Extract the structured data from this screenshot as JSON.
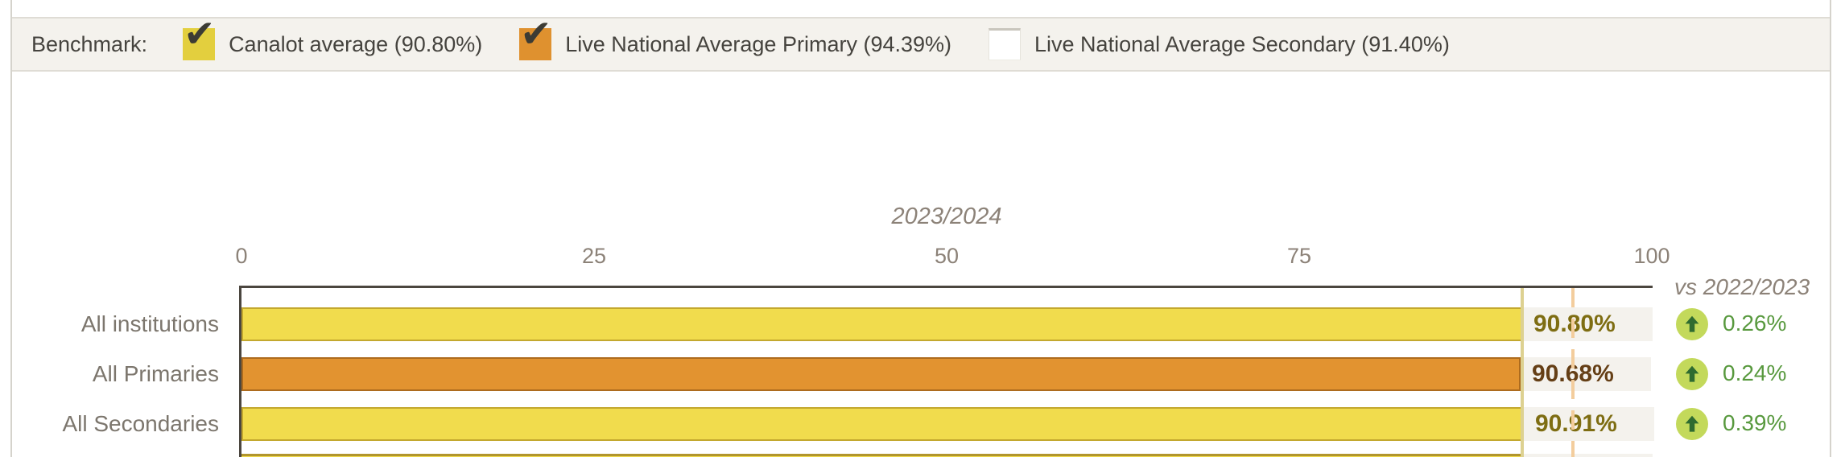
{
  "benchmark_bar": {
    "label": "Benchmark:",
    "items": [
      {
        "label": "Canalot average (90.80%)",
        "checked": true,
        "box_color": "#e3cf3e"
      },
      {
        "label": "Live National Average Primary (94.39%)",
        "checked": true,
        "box_color": "#df912f"
      },
      {
        "label": "Live National Average Secondary (91.40%)",
        "checked": false,
        "box_color": "#ffffff"
      }
    ]
  },
  "chart_data": {
    "type": "bar",
    "orientation": "horizontal",
    "title": "2023/2024",
    "comparison_header": "vs 2022/2023",
    "xlim": [
      0,
      100
    ],
    "x_ticks": [
      "0",
      "25",
      "50",
      "75",
      "100"
    ],
    "x_tick_values": [
      0,
      25,
      50,
      75,
      100
    ],
    "grid": false,
    "categories": [
      "All institutions",
      "All Primaries",
      "All Secondaries"
    ],
    "values": [
      90.8,
      90.68,
      90.91
    ],
    "rows": [
      {
        "category": "All institutions",
        "value": 90.8,
        "value_label": "90.80%",
        "bar_fill": "#f1dc4d",
        "bar_border": "#c3a82e",
        "value_color": "#7e6d12",
        "change": "0.26%",
        "change_direction": "up"
      },
      {
        "category": "All Primaries",
        "value": 90.68,
        "value_label": "90.68%",
        "bar_fill": "#e29330",
        "bar_border": "#ad6b1e",
        "value_color": "#653f16",
        "change": "0.24%",
        "change_direction": "up"
      },
      {
        "category": "All Secondaries",
        "value": 90.91,
        "value_label": "90.91%",
        "bar_fill": "#f1dc4d",
        "bar_border": "#c3a82e",
        "value_color": "#7e6d12",
        "change": "0.39%",
        "change_direction": "up"
      }
    ],
    "reference_lines": [
      {
        "name": "Canalot average",
        "value": 90.8,
        "color": "#ddd191",
        "style": "solid"
      },
      {
        "name": "Live National Average Primary",
        "value": 94.39,
        "color": "#f3cd9d",
        "style": "dashed"
      }
    ],
    "partial_bottom_row": {
      "bar_fill": "#f1dc4d",
      "bar_border": "#b1952e"
    },
    "legend_position": "top"
  },
  "colors": {
    "up_circle_fill": "#c3d95b",
    "up_arrow": "#2e6b30",
    "change_text": "#58993e",
    "axis": "#4b463f",
    "muted_text": "#8c8278"
  }
}
